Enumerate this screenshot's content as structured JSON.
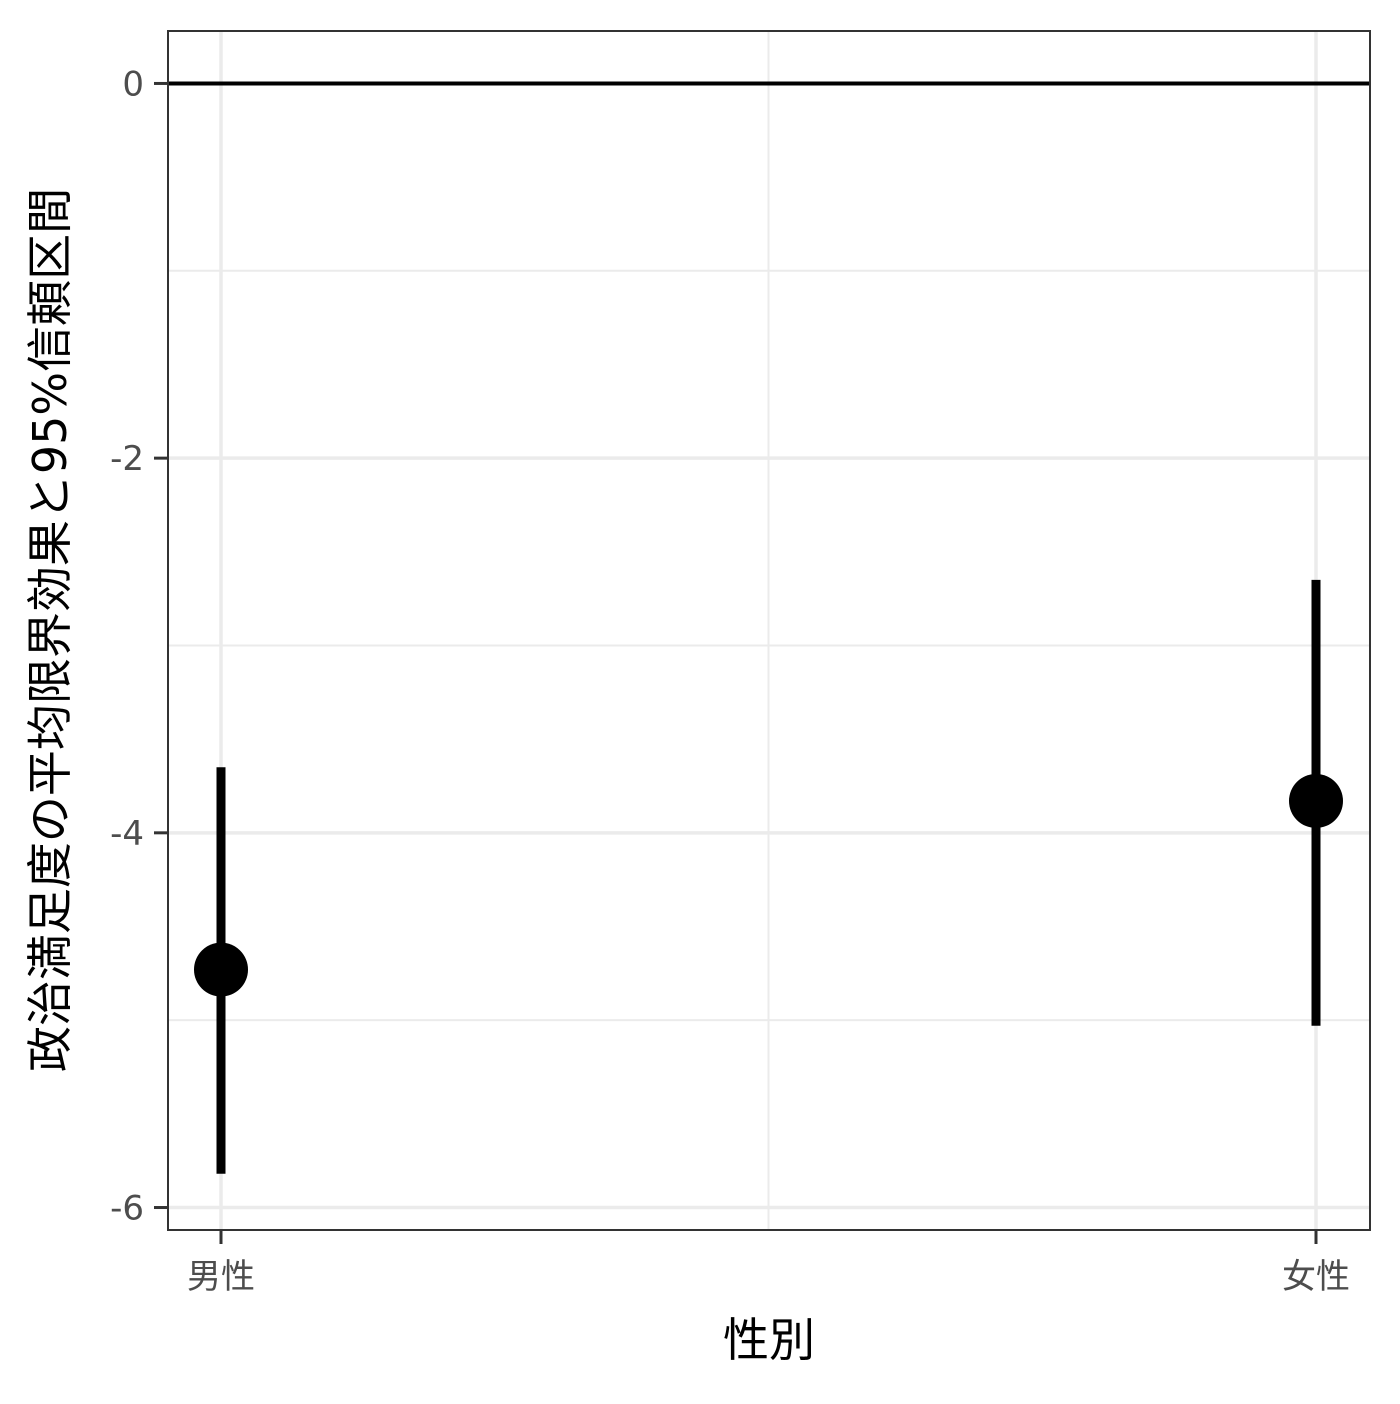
{
  "chart_data": {
    "type": "pointrange",
    "title": "",
    "xlabel": "性別",
    "ylabel": "政治満足度の平均限界効果と95%信頼区間",
    "categories": [
      "男性",
      "女性"
    ],
    "series": [
      {
        "estimate": [
          -4.73,
          -3.83
        ],
        "lower": [
          -5.82,
          -5.03
        ],
        "upper": [
          -3.65,
          -2.65
        ]
      }
    ],
    "ylim": [
      -6.12,
      0.28
    ],
    "yticks": [
      0,
      -2,
      -4,
      -6
    ],
    "ytick_labels": [
      "0",
      "-2",
      "-4",
      "-6"
    ],
    "reference_line_y": 0,
    "grid": true,
    "colors": {
      "points": "#000000",
      "grid": "#ebebeb",
      "panel_border": "#333333",
      "tick_text": "#4d4d4d"
    }
  }
}
